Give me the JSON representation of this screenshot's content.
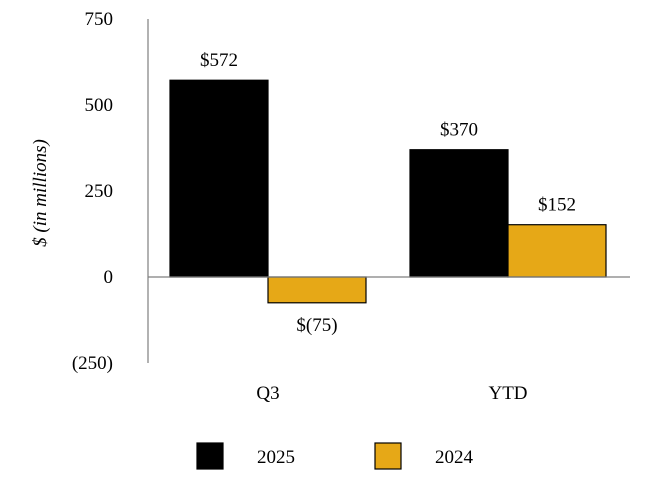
{
  "chart_data": {
    "type": "bar",
    "ylabel": "$ (in millions)",
    "xlabel": "",
    "categories": [
      "Q3",
      "YTD"
    ],
    "ylim": [
      -250,
      750
    ],
    "yticks": [
      750,
      500,
      250,
      0,
      -250
    ],
    "ytick_labels": [
      "750",
      "500",
      "250",
      "0",
      "(250)"
    ],
    "series": [
      {
        "name": "2025",
        "color": "#000000",
        "values": [
          572,
          370
        ],
        "labels": [
          "$572",
          "$370"
        ]
      },
      {
        "name": "2024",
        "color": "#E6A817",
        "values": [
          -75,
          152
        ],
        "labels": [
          "$(75)",
          "$152"
        ]
      }
    ],
    "legend_position": "bottom",
    "grid": false
  }
}
